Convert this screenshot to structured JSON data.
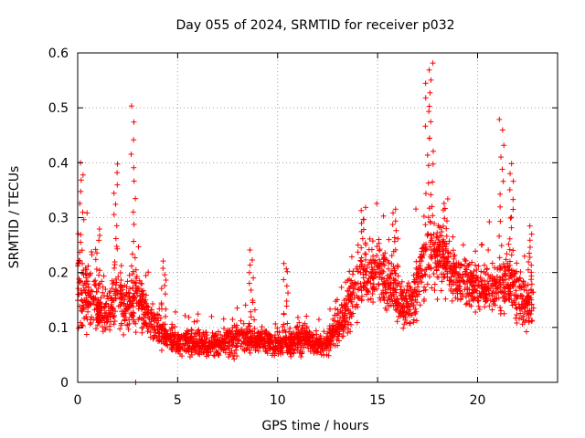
{
  "chart_data": {
    "type": "scatter",
    "title": "Day 055 of 2024, SRMTID for receiver p032",
    "xlabel": "GPS time / hours",
    "ylabel": "SRMTID / TECUs",
    "xlim": [
      0,
      24
    ],
    "ylim": [
      0,
      0.6
    ],
    "xticks": [
      0,
      5,
      10,
      15,
      20
    ],
    "yticks": [
      0,
      0.1,
      0.2,
      0.3,
      0.4,
      0.5,
      0.6
    ],
    "xtick_labels": [
      "0",
      "5",
      "10",
      "15",
      "20"
    ],
    "ytick_labels": [
      "0",
      "0.1",
      "0.2",
      "0.3",
      "0.4",
      "0.5",
      "0.6"
    ],
    "grid": true,
    "marker": "+",
    "series_color": "#ff0000",
    "profile": {
      "description": "approximate envelope of the point cloud (hour, typical SRMTID, spread)",
      "hours": [
        0,
        0.5,
        1,
        1.5,
        2,
        2.5,
        3,
        3.5,
        4,
        4.5,
        5,
        6,
        7,
        8,
        9,
        10,
        11,
        12,
        12.5,
        13,
        13.5,
        14,
        14.5,
        15,
        15.5,
        16,
        16.5,
        17,
        17.5,
        18,
        18.5,
        19,
        19.5,
        20,
        20.5,
        21,
        21.5,
        22,
        22.5,
        22.8
      ],
      "center": [
        0.17,
        0.16,
        0.13,
        0.13,
        0.15,
        0.14,
        0.16,
        0.12,
        0.1,
        0.08,
        0.07,
        0.07,
        0.07,
        0.08,
        0.08,
        0.07,
        0.08,
        0.07,
        0.07,
        0.1,
        0.14,
        0.18,
        0.2,
        0.2,
        0.19,
        0.16,
        0.13,
        0.17,
        0.24,
        0.23,
        0.21,
        0.19,
        0.18,
        0.18,
        0.17,
        0.17,
        0.19,
        0.16,
        0.14,
        0.15
      ],
      "spread": [
        0.06,
        0.05,
        0.04,
        0.04,
        0.05,
        0.05,
        0.06,
        0.04,
        0.03,
        0.02,
        0.02,
        0.02,
        0.02,
        0.025,
        0.02,
        0.02,
        0.025,
        0.02,
        0.02,
        0.03,
        0.04,
        0.05,
        0.05,
        0.05,
        0.05,
        0.05,
        0.04,
        0.05,
        0.07,
        0.06,
        0.05,
        0.04,
        0.04,
        0.04,
        0.04,
        0.05,
        0.05,
        0.05,
        0.04,
        0.05
      ]
    },
    "spikes": [
      {
        "hour": 0.2,
        "peak": 0.4
      },
      {
        "hour": 1.0,
        "peak": 0.28
      },
      {
        "hour": 1.9,
        "peak": 0.4
      },
      {
        "hour": 2.8,
        "peak": 0.5
      },
      {
        "hour": 2.9,
        "peak": 0.0
      },
      {
        "hour": 4.3,
        "peak": 0.22
      },
      {
        "hour": 8.7,
        "peak": 0.24
      },
      {
        "hour": 10.4,
        "peak": 0.22
      },
      {
        "hour": 14.3,
        "peak": 0.32
      },
      {
        "hour": 15.8,
        "peak": 0.32
      },
      {
        "hour": 17.5,
        "peak": 0.57
      },
      {
        "hour": 17.7,
        "peak": 0.58
      },
      {
        "hour": 18.4,
        "peak": 0.33
      },
      {
        "hour": 21.2,
        "peak": 0.48
      },
      {
        "hour": 21.7,
        "peak": 0.4
      },
      {
        "hour": 22.6,
        "peak": 0.28
      }
    ]
  }
}
